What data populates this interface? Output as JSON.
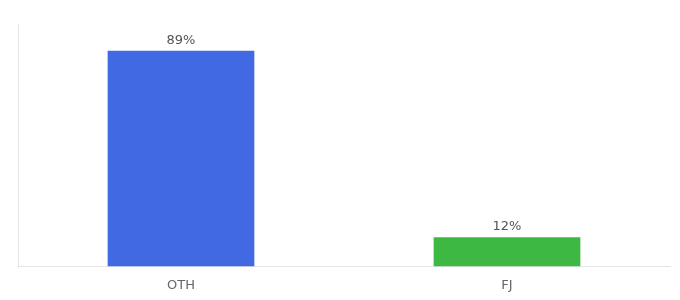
{
  "chart_data": {
    "type": "bar",
    "categories": [
      "OTH",
      "FJ"
    ],
    "values": [
      89,
      12
    ],
    "value_labels": [
      "89%",
      "12%"
    ],
    "colors": [
      "#4169e1",
      "#3cb843"
    ],
    "ylim": [
      0,
      100
    ],
    "data_labels": true,
    "tick_labels": "x",
    "grid": false
  }
}
